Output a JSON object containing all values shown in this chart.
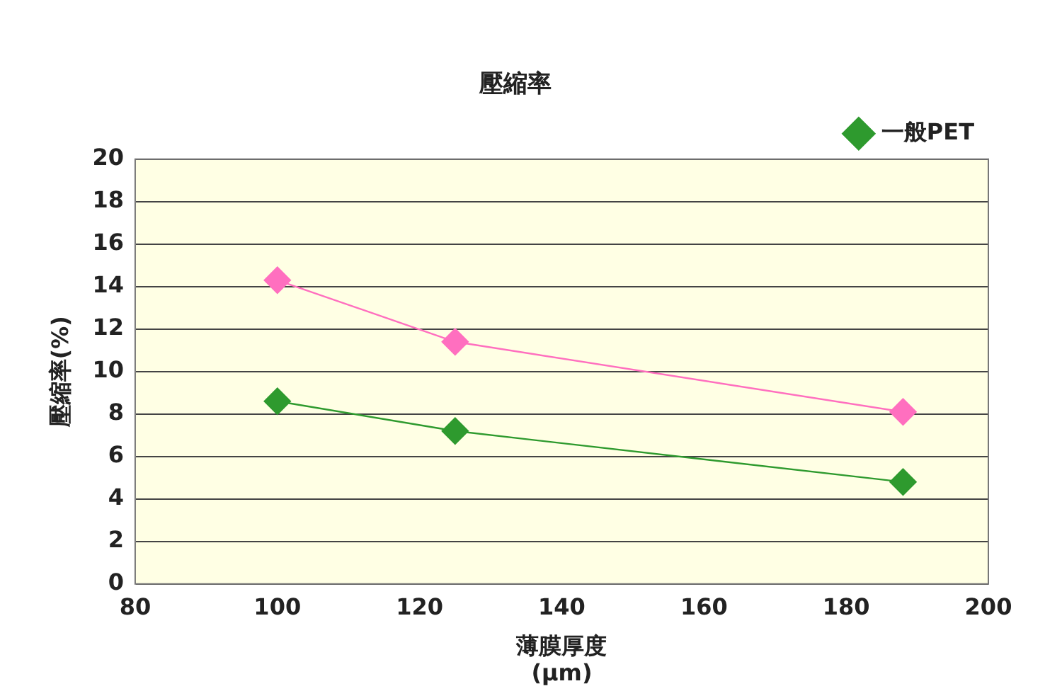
{
  "chart_data": {
    "type": "line",
    "title": "壓縮率",
    "xlabel": "薄膜厚度\n(μm)",
    "ylabel": "壓縮率(%)",
    "x": [
      100,
      125,
      188
    ],
    "series": [
      {
        "color": "#ff6fbf",
        "values": [
          14.3,
          11.4,
          8.1
        ]
      },
      {
        "name": "一般PET",
        "color": "#2e9a2e",
        "values": [
          8.6,
          7.2,
          4.8
        ]
      }
    ],
    "xlim": [
      80,
      200
    ],
    "xticks": [
      80,
      100,
      120,
      140,
      160,
      180,
      200
    ],
    "ylim": [
      0,
      20
    ],
    "yticks": [
      0,
      2,
      4,
      6,
      8,
      10,
      12,
      14,
      16,
      18,
      20
    ],
    "grid": "y",
    "legend": "top right",
    "marker": "diamond",
    "line_style": "solid"
  }
}
